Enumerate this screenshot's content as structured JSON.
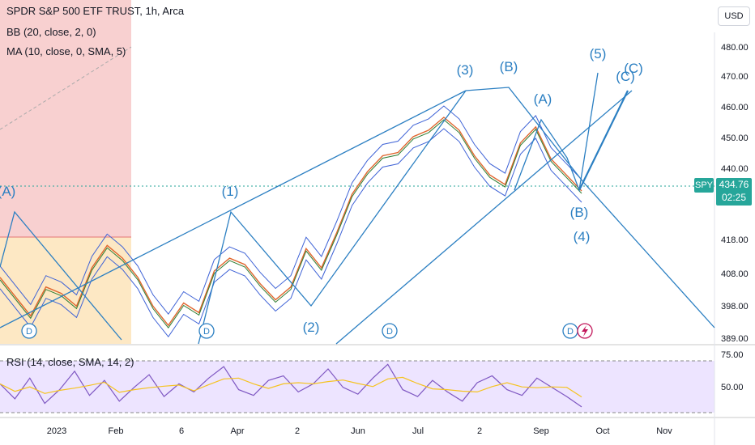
{
  "header": {
    "title": "SPDR S&P 500 ETF TRUST, 1h, Arca",
    "indicator_bb": "BB (20, close, 2, 0)",
    "indicator_ma": "MA (10, close, 0, SMA, 5)",
    "indicator_rsi": "RSI (14, close, SMA, 14, 2)"
  },
  "currency_button": "USD",
  "price_badge": {
    "symbol": "SPY",
    "price": "434.76",
    "countdown": "02:25"
  },
  "colors": {
    "wave": "#2b7fc2",
    "price": "#3e62d6",
    "bull_zone": "#f8d0d0",
    "neutral_zone": "#fde8c4",
    "rsi_band": "#ede4ff",
    "rsi_line": "#7e57c2",
    "rsi_ma": "#f5c320",
    "badge": "#26a69a"
  },
  "chart_data": {
    "type": "line",
    "price_axis": {
      "ticks": [
        "480.00",
        "470.00",
        "460.00",
        "450.00",
        "440.00",
        "418.00",
        "408.00",
        "398.00",
        "389.00"
      ]
    },
    "rsi_axis": {
      "ticks": [
        "75.00",
        "50.00"
      ]
    },
    "time_axis": {
      "ticks": [
        "2023",
        "Feb",
        "6",
        "Apr",
        "2",
        "Jun",
        "Jul",
        "2",
        "Sep",
        "Oct",
        "Nov"
      ]
    },
    "wave_labels": [
      "(A)",
      "(1)",
      "(2)",
      "(3)",
      "(B)",
      "(A)",
      "(4)",
      "(B)",
      "(5)",
      "(C)",
      "(C)"
    ],
    "event_markers": [
      "D",
      "D",
      "D",
      "D"
    ],
    "series": [
      {
        "values": [
          408,
          402,
          396,
          405,
          403,
          399,
          411,
          418,
          414,
          408,
          399,
          393,
          400,
          397,
          410,
          414,
          412,
          406,
          401,
          405,
          417,
          411,
          422,
          434,
          441,
          446,
          447,
          452,
          454,
          458,
          454,
          446,
          440,
          437,
          450,
          455,
          445,
          440,
          435
        ]
      }
    ],
    "rsi_values": [
      55,
      42,
      60,
      38,
      50,
      66,
      45,
      58,
      40,
      52,
      63,
      44,
      55,
      48,
      60,
      70,
      50,
      45,
      58,
      62,
      48,
      55,
      68,
      52,
      46,
      60,
      72,
      50,
      44,
      58,
      48,
      40,
      56,
      62,
      50,
      45,
      60,
      52,
      44,
      35
    ]
  }
}
